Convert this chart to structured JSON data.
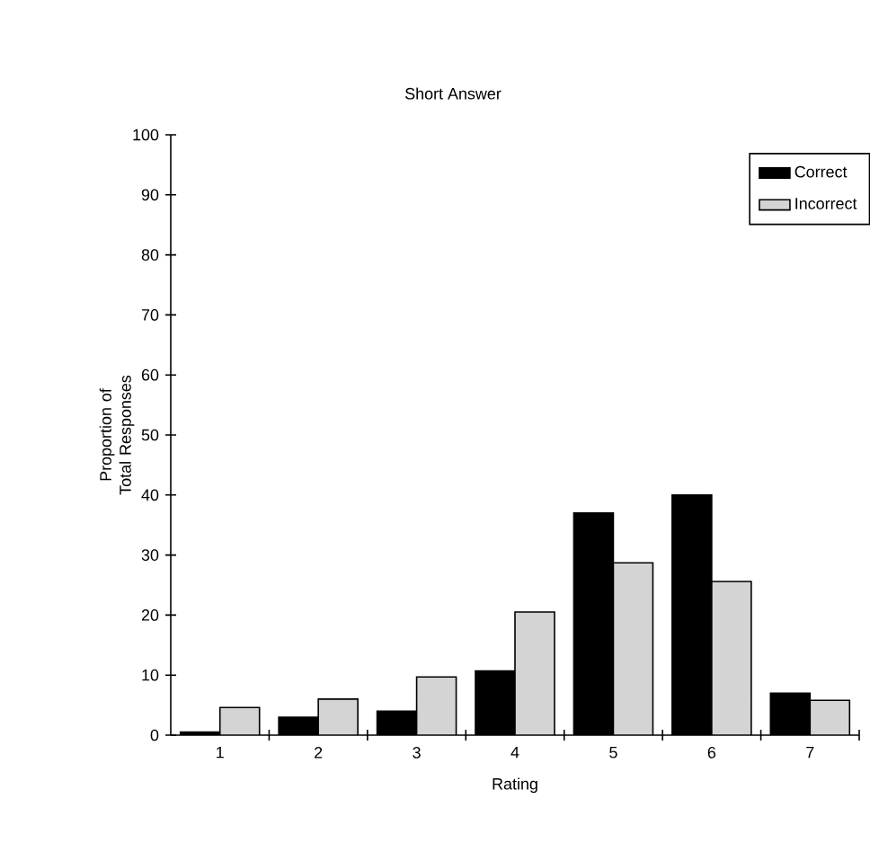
{
  "chart_data": {
    "type": "bar",
    "title": "Short Answer",
    "xlabel": "Rating",
    "ylabel": "Proportion of Total Responses",
    "categories": [
      "1",
      "2",
      "3",
      "4",
      "5",
      "6",
      "7"
    ],
    "series": [
      {
        "name": "Correct",
        "color": "#000000",
        "values": [
          0.5,
          3,
          4,
          10.7,
          37,
          40,
          7
        ]
      },
      {
        "name": "Incorrect",
        "color": "#d4d4d4",
        "values": [
          4.6,
          6,
          9.7,
          20.5,
          28.7,
          25.6,
          5.8
        ]
      }
    ],
    "ylim": [
      0,
      100
    ],
    "yticks": [
      0,
      10,
      20,
      30,
      40,
      50,
      60,
      70,
      80,
      90,
      100
    ],
    "grid": false,
    "legend": "top right"
  }
}
